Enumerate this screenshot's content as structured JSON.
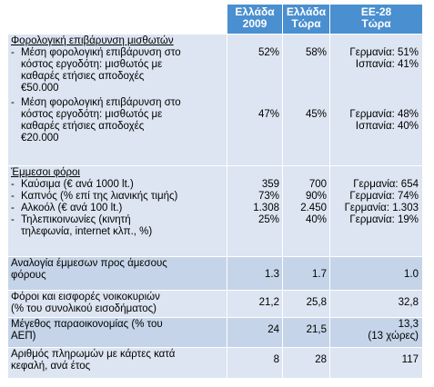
{
  "header": {
    "col_greece_2009": [
      "Ελλάδα",
      "2009"
    ],
    "col_greece_now": [
      "Ελλάδα",
      "Τώρα"
    ],
    "col_eu28_now": [
      "ΕΕ-28",
      "Τώρα"
    ]
  },
  "section_income_tax": {
    "title": "Φορολογική επιβάρυνση μισθωτών",
    "rows": [
      {
        "label": [
          "Μέση φορολογική επιβάρυνση στο",
          "κόστος εργοδότη: μισθωτός με",
          "καθαρές ετήσιες αποδοχές",
          "€50.000"
        ],
        "greece_2009": "52%",
        "greece_now": "58%",
        "eu": [
          "Γερμανία: 51%",
          "Ισπανία: 41%"
        ]
      },
      {
        "label": [
          "Μέση φορολογική επιβάρυνση στο",
          "κόστος εργοδότη: μισθωτός με",
          "καθαρές ετήσιες αποδοχές",
          "€20.000"
        ],
        "greece_2009": "47%",
        "greece_now": "45%",
        "eu": [
          "Γερμανία: 48%",
          "Ισπανία: 40%"
        ]
      }
    ]
  },
  "section_indirect": {
    "title": "Έμμεσοι φόροι",
    "rows": [
      {
        "label": [
          "Καύσιμα (€ ανά 1000 lt.)"
        ],
        "greece_2009": "359",
        "greece_now": "700",
        "eu": [
          "Γερμανία: 654"
        ]
      },
      {
        "label": [
          "Καπνός (% επί της λιανικής τιμής)"
        ],
        "greece_2009": "73%",
        "greece_now": "90%",
        "eu": [
          "Γερμανία: 74%"
        ]
      },
      {
        "label": [
          "Αλκοόλ (€ ανά 100 lt.)"
        ],
        "greece_2009": "1.308",
        "greece_now": "2.450",
        "eu": [
          "Γερμανία: 1.303"
        ]
      },
      {
        "label": [
          "Τηλεπικοινωνίες (κινητή",
          "τηλεφωνία, internet κλπ., %)"
        ],
        "greece_2009": "25%",
        "greece_now": "40%",
        "eu": [
          "Γερμανία: 19%"
        ]
      }
    ]
  },
  "rows_other": [
    {
      "label": [
        "Αναλογία έμμεσων προς άμεσους",
        "φόρους"
      ],
      "greece_2009": "1.3",
      "greece_now": "1.7",
      "eu": [
        "1.0"
      ]
    },
    {
      "label": [
        "Φόροι και εισφορές νοικοκυριών",
        "(% του συνολικού εισοδήματος)"
      ],
      "greece_2009": "21,2",
      "greece_now": "25,8",
      "eu": [
        "32,8"
      ]
    },
    {
      "label": [
        "Μέγεθος παραοικονομίας (% του",
        "ΑΕΠ)"
      ],
      "greece_2009": "24",
      "greece_now": "21,5",
      "eu": [
        "13,3",
        "(13 χώρες)"
      ]
    },
    {
      "label": [
        "Αριθμός πληρωμών με κάρτες κατά",
        "κεφαλή, ανά έτος"
      ],
      "greece_2009": "8",
      "greece_now": "28",
      "eu": [
        "117"
      ]
    }
  ],
  "colors": {
    "header_bg": "#4a8fcf",
    "row_light": "#dce5f1",
    "row_dark": "#c5d4e8"
  }
}
